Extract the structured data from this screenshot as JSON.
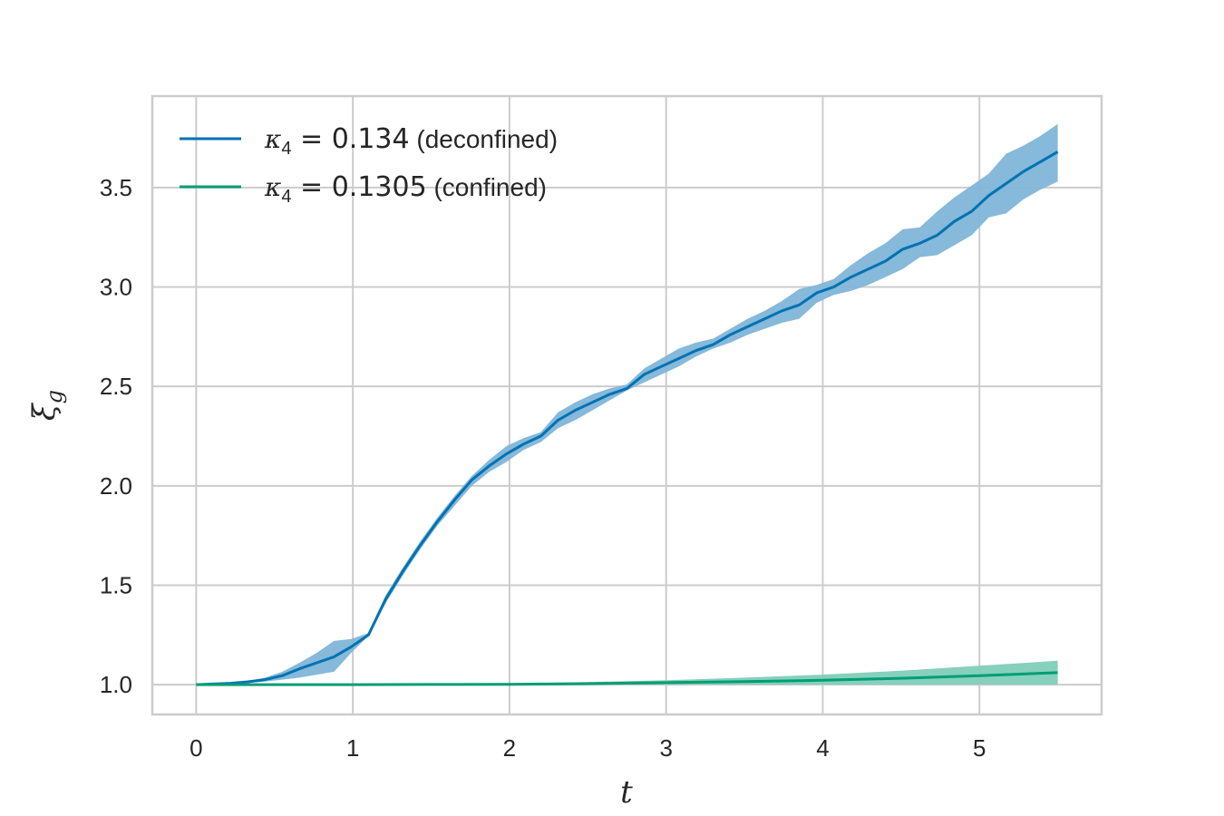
{
  "chart_data": {
    "type": "line",
    "title": "",
    "xlabel": "t",
    "ylabel": "ξg",
    "xlim": [
      -0.28,
      5.78
    ],
    "ylim": [
      0.85,
      3.96
    ],
    "grid": true,
    "legend_position": "top-left",
    "x_ticks": [
      0,
      1,
      2,
      3,
      4,
      5
    ],
    "x_tick_labels": [
      "0",
      "1",
      "2",
      "3",
      "4",
      "5"
    ],
    "y_ticks": [
      1.0,
      1.5,
      2.0,
      2.5,
      3.0,
      3.5
    ],
    "y_tick_labels": [
      "1.0",
      "1.5",
      "2.0",
      "2.5",
      "3.0",
      "3.5"
    ],
    "colors": {
      "deconfined": "#0072b2",
      "deconfined_band": "#7fb5d8",
      "confined": "#009e73",
      "confined_band": "#80ceb9"
    },
    "series": [
      {
        "name": "κ4 = 0.134 (deconfined)",
        "legend_symbol": "κ",
        "legend_sub": "4",
        "legend_value": " = 0.134",
        "legend_note": " (deconfined)",
        "color": "#0072b2",
        "x": [
          0.0,
          0.11,
          0.22,
          0.33,
          0.44,
          0.55,
          0.66,
          0.77,
          0.88,
          0.99,
          1.1,
          1.21,
          1.32,
          1.43,
          1.54,
          1.65,
          1.76,
          1.87,
          1.98,
          2.09,
          2.2,
          2.31,
          2.42,
          2.53,
          2.64,
          2.75,
          2.86,
          2.97,
          3.08,
          3.19,
          3.3,
          3.41,
          3.52,
          3.63,
          3.74,
          3.85,
          3.96,
          4.07,
          4.18,
          4.29,
          4.4,
          4.51,
          4.62,
          4.73,
          4.84,
          4.95,
          5.06,
          5.17,
          5.28,
          5.39,
          5.5
        ],
        "y": [
          1.0,
          1.003,
          1.007,
          1.014,
          1.025,
          1.045,
          1.08,
          1.11,
          1.14,
          1.19,
          1.25,
          1.43,
          1.57,
          1.7,
          1.82,
          1.93,
          2.03,
          2.1,
          2.16,
          2.21,
          2.25,
          2.33,
          2.38,
          2.42,
          2.46,
          2.49,
          2.56,
          2.6,
          2.64,
          2.68,
          2.71,
          2.76,
          2.8,
          2.84,
          2.88,
          2.91,
          2.97,
          3.0,
          3.05,
          3.09,
          3.13,
          3.19,
          3.22,
          3.26,
          3.33,
          3.38,
          3.46,
          3.52,
          3.58,
          3.63,
          3.68
        ],
        "y_low": [
          1.0,
          1.002,
          1.005,
          1.01,
          1.015,
          1.025,
          1.035,
          1.05,
          1.065,
          1.16,
          1.245,
          1.41,
          1.55,
          1.68,
          1.8,
          1.9,
          2.0,
          2.07,
          2.12,
          2.18,
          2.22,
          2.29,
          2.33,
          2.38,
          2.43,
          2.48,
          2.52,
          2.56,
          2.6,
          2.65,
          2.69,
          2.72,
          2.76,
          2.79,
          2.82,
          2.84,
          2.92,
          2.96,
          2.98,
          3.01,
          3.05,
          3.09,
          3.15,
          3.16,
          3.21,
          3.26,
          3.35,
          3.37,
          3.44,
          3.49,
          3.53
        ],
        "y_high": [
          1.0,
          1.004,
          1.009,
          1.018,
          1.035,
          1.065,
          1.11,
          1.16,
          1.22,
          1.23,
          1.26,
          1.45,
          1.59,
          1.72,
          1.84,
          1.95,
          2.05,
          2.13,
          2.2,
          2.24,
          2.27,
          2.37,
          2.42,
          2.46,
          2.49,
          2.51,
          2.59,
          2.64,
          2.69,
          2.72,
          2.74,
          2.79,
          2.84,
          2.88,
          2.93,
          2.99,
          3.01,
          3.04,
          3.11,
          3.17,
          3.22,
          3.29,
          3.3,
          3.38,
          3.45,
          3.51,
          3.57,
          3.67,
          3.71,
          3.76,
          3.82
        ]
      },
      {
        "name": "κ4 = 0.1305 (confined)",
        "legend_symbol": "κ",
        "legend_sub": "4",
        "legend_value": " = 0.1305",
        "legend_note": " (confined)",
        "color": "#009e73",
        "x": [
          0.0,
          0.5,
          1.0,
          1.5,
          2.0,
          2.5,
          3.0,
          3.5,
          4.0,
          4.5,
          5.0,
          5.5
        ],
        "y": [
          1.0,
          1.0,
          1.0,
          1.001,
          1.002,
          1.005,
          1.01,
          1.015,
          1.022,
          1.032,
          1.045,
          1.06
        ],
        "y_low": [
          1.0,
          1.0,
          1.0,
          1.0,
          1.0,
          1.0,
          1.0,
          1.0,
          1.0,
          1.0,
          1.0,
          1.0
        ],
        "y_high": [
          1.0,
          1.0,
          1.001,
          1.003,
          1.007,
          1.013,
          1.022,
          1.035,
          1.05,
          1.07,
          1.095,
          1.12
        ]
      }
    ]
  }
}
